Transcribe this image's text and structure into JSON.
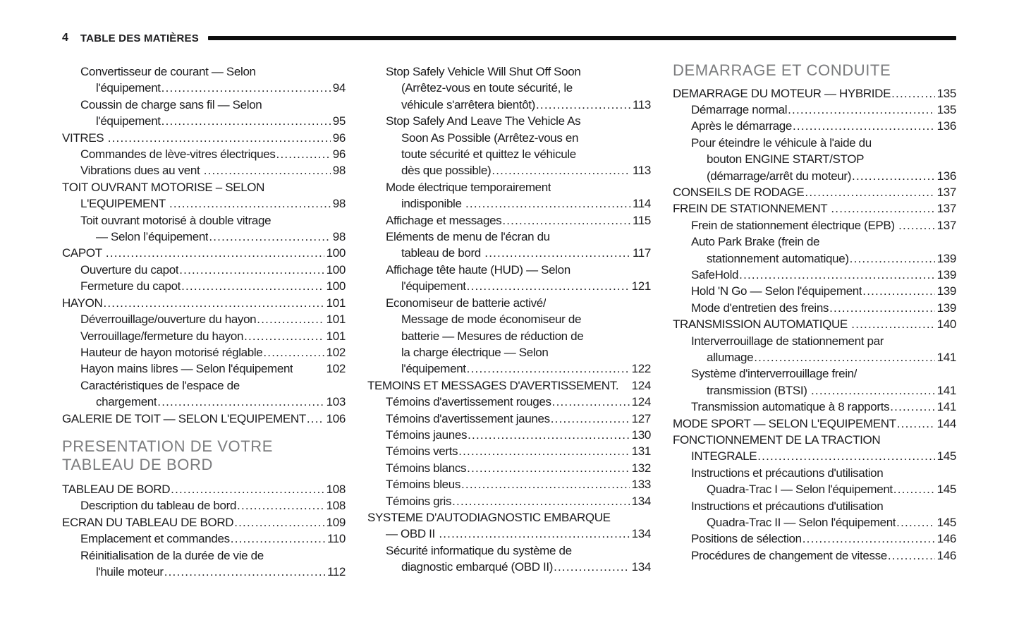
{
  "header": {
    "page_number": "4",
    "title": "TABLE DES MATIÈRES"
  },
  "colors": {
    "background": "#ffffff",
    "text": "#1c1c1e",
    "section_header": "#7b7c7e",
    "rule": "#0e0e0e"
  },
  "columns": [
    {
      "items": [
        {
          "type": "entry",
          "lines": [
            {
              "t": "Convertisseur de courant — Selon",
              "i": 1
            },
            {
              "t": "l'équipement",
              "i": 2,
              "p": "94"
            }
          ]
        },
        {
          "type": "entry",
          "lines": [
            {
              "t": "Coussin de charge sans fil — Selon",
              "i": 1
            },
            {
              "t": "l'équipement",
              "i": 2,
              "p": "95"
            }
          ]
        },
        {
          "type": "entry",
          "lines": [
            {
              "t": "VITRES ",
              "i": 0,
              "p": "96"
            }
          ]
        },
        {
          "type": "entry",
          "lines": [
            {
              "t": "Commandes de lève-vitres électriques",
              "i": 1,
              "p": "96"
            }
          ]
        },
        {
          "type": "entry",
          "lines": [
            {
              "t": "Vibrations dues au vent ",
              "i": 1,
              "p": "98"
            }
          ]
        },
        {
          "type": "entry",
          "lines": [
            {
              "t": "TOIT OUVRANT MOTORISE – SELON",
              "i": 0
            },
            {
              "t": "L'EQUIPEMENT ",
              "i": 1,
              "p": "98"
            }
          ]
        },
        {
          "type": "entry",
          "lines": [
            {
              "t": "Toit ouvrant motorisé à double vitrage",
              "i": 1
            },
            {
              "t": "— Selon l’équipement",
              "i": 2,
              "p": "98"
            }
          ]
        },
        {
          "type": "entry",
          "lines": [
            {
              "t": "CAPOT ",
              "i": 0,
              "p": "100"
            }
          ]
        },
        {
          "type": "entry",
          "lines": [
            {
              "t": "Ouverture du capot",
              "i": 1,
              "p": "100"
            }
          ]
        },
        {
          "type": "entry",
          "lines": [
            {
              "t": "Fermeture du capot",
              "i": 1,
              "p": "100"
            }
          ]
        },
        {
          "type": "entry",
          "lines": [
            {
              "t": "HAYON",
              "i": 0,
              "p": "101"
            }
          ]
        },
        {
          "type": "entry",
          "lines": [
            {
              "t": "Déverrouillage/ouverture du hayon",
              "i": 1,
              "p": "101"
            }
          ]
        },
        {
          "type": "entry",
          "lines": [
            {
              "t": "Verrouillage/fermeture du hayon",
              "i": 1,
              "p": "101"
            }
          ]
        },
        {
          "type": "entry",
          "lines": [
            {
              "t": "Hauteur de hayon motorisé réglable",
              "i": 1,
              "p": "102"
            }
          ]
        },
        {
          "type": "entry",
          "lines": [
            {
              "t": "Hayon mains libres — Selon l'équipement",
              "i": 1,
              "p": "102",
              "leader": "space"
            }
          ]
        },
        {
          "type": "entry",
          "lines": [
            {
              "t": "Caractéristiques de l'espace de",
              "i": 1
            },
            {
              "t": "chargement",
              "i": 2,
              "p": "103"
            }
          ]
        },
        {
          "type": "entry",
          "lines": [
            {
              "t": "GALERIE DE TOIT — SELON L'EQUIPEMENT",
              "i": 0,
              "p": "106"
            }
          ]
        },
        {
          "type": "header",
          "lines": [
            "PRESENTATION DE VOTRE",
            "TABLEAU DE BORD"
          ]
        },
        {
          "type": "entry",
          "lines": [
            {
              "t": "TABLEAU DE BORD",
              "i": 0,
              "p": "108"
            }
          ]
        },
        {
          "type": "entry",
          "lines": [
            {
              "t": "Description du tableau de bord",
              "i": 1,
              "p": "108"
            }
          ]
        },
        {
          "type": "entry",
          "lines": [
            {
              "t": "ECRAN DU TABLEAU DE BORD",
              "i": 0,
              "p": "109"
            }
          ]
        },
        {
          "type": "entry",
          "lines": [
            {
              "t": "Emplacement et commandes",
              "i": 1,
              "p": "110"
            }
          ]
        },
        {
          "type": "entry",
          "lines": [
            {
              "t": "Réinitialisation de la durée de vie de",
              "i": 1
            },
            {
              "t": "l'huile moteur",
              "i": 2,
              "p": "112"
            }
          ]
        }
      ]
    },
    {
      "items": [
        {
          "type": "entry",
          "lines": [
            {
              "t": "Stop Safely Vehicle Will Shut Off Soon",
              "i": 1
            },
            {
              "t": "(Arrêtez-vous en toute sécurité, le",
              "i": 2
            },
            {
              "t": "véhicule s'arrêtera bientôt)",
              "i": 2,
              "p": "113"
            }
          ]
        },
        {
          "type": "entry",
          "lines": [
            {
              "t": "Stop Safely And Leave The Vehicle As",
              "i": 1
            },
            {
              "t": "Soon As Possible (Arrêtez-vous en",
              "i": 2
            },
            {
              "t": "toute sécurité et quittez le véhicule",
              "i": 2
            },
            {
              "t": "dès que possible)",
              "i": 2,
              "p": "113"
            }
          ]
        },
        {
          "type": "entry",
          "lines": [
            {
              "t": "Mode électrique temporairement",
              "i": 1
            },
            {
              "t": "indisponible ",
              "i": 2,
              "p": "114"
            }
          ]
        },
        {
          "type": "entry",
          "lines": [
            {
              "t": "Affichage et messages",
              "i": 1,
              "p": "115"
            }
          ]
        },
        {
          "type": "entry",
          "lines": [
            {
              "t": "Eléments de menu de l'écran du",
              "i": 1
            },
            {
              "t": "tableau de bord ",
              "i": 2,
              "p": "117"
            }
          ]
        },
        {
          "type": "entry",
          "lines": [
            {
              "t": "Affichage tête haute (HUD) — Selon",
              "i": 1
            },
            {
              "t": "l'équipement",
              "i": 2,
              "p": "121"
            }
          ]
        },
        {
          "type": "entry",
          "lines": [
            {
              "t": "Economiseur de batterie activé/",
              "i": 1
            },
            {
              "t": "Message de mode économiseur de",
              "i": 2
            },
            {
              "t": "batterie — Mesures de réduction de",
              "i": 2
            },
            {
              "t": "la charge électrique — Selon",
              "i": 2
            },
            {
              "t": "l'équipement",
              "i": 2,
              "p": "122"
            }
          ]
        },
        {
          "type": "entry",
          "lines": [
            {
              "t": "TEMOINS ET MESSAGES D'AVERTISSEMENT.",
              "i": 0,
              "p": "124",
              "leader": "space"
            }
          ]
        },
        {
          "type": "entry",
          "lines": [
            {
              "t": "Témoins d'avertissement rouges",
              "i": 1,
              "p": "124"
            }
          ]
        },
        {
          "type": "entry",
          "lines": [
            {
              "t": "Témoins d'avertissement jaunes",
              "i": 1,
              "p": "127"
            }
          ]
        },
        {
          "type": "entry",
          "lines": [
            {
              "t": "Témoins jaunes",
              "i": 1,
              "p": "130"
            }
          ]
        },
        {
          "type": "entry",
          "lines": [
            {
              "t": "Témoins verts",
              "i": 1,
              "p": "131"
            }
          ]
        },
        {
          "type": "entry",
          "lines": [
            {
              "t": "Témoins blancs",
              "i": 1,
              "p": "132"
            }
          ]
        },
        {
          "type": "entry",
          "lines": [
            {
              "t": "Témoins bleus",
              "i": 1,
              "p": "133"
            }
          ]
        },
        {
          "type": "entry",
          "lines": [
            {
              "t": "Témoins gris",
              "i": 1,
              "p": "134"
            }
          ]
        },
        {
          "type": "entry",
          "lines": [
            {
              "t": "SYSTEME D'AUTODIAGNOSTIC EMBARQUE",
              "i": 0
            },
            {
              "t": "— OBD II ",
              "i": 1,
              "p": "134"
            }
          ]
        },
        {
          "type": "entry",
          "lines": [
            {
              "t": "Sécurité informatique du système de",
              "i": 1
            },
            {
              "t": "diagnostic embarqué (OBD II)",
              "i": 2,
              "p": "134"
            }
          ]
        }
      ]
    },
    {
      "items": [
        {
          "type": "header",
          "lines": [
            "DEMARRAGE ET CONDUITE"
          ]
        },
        {
          "type": "entry",
          "lines": [
            {
              "t": "DEMARRAGE DU MOTEUR — HYBRIDE",
              "i": 0,
              "p": "135"
            }
          ]
        },
        {
          "type": "entry",
          "lines": [
            {
              "t": "Démarrage normal",
              "i": 1,
              "p": "135"
            }
          ]
        },
        {
          "type": "entry",
          "lines": [
            {
              "t": "Après le démarrage",
              "i": 1,
              "p": "136"
            }
          ]
        },
        {
          "type": "entry",
          "lines": [
            {
              "t": "Pour éteindre le véhicule à l'aide du",
              "i": 1
            },
            {
              "t": "bouton ENGINE START/STOP",
              "i": 2
            },
            {
              "t": "(démarrage/arrêt du moteur)",
              "i": 2,
              "p": "136"
            }
          ]
        },
        {
          "type": "entry",
          "lines": [
            {
              "t": "CONSEILS DE RODAGE",
              "i": 0,
              "p": "137"
            }
          ]
        },
        {
          "type": "entry",
          "lines": [
            {
              "t": "FREIN DE STATIONNEMENT ",
              "i": 0,
              "p": "137"
            }
          ]
        },
        {
          "type": "entry",
          "lines": [
            {
              "t": "Frein de stationnement électrique (EPB) ",
              "i": 1,
              "p": "137"
            }
          ]
        },
        {
          "type": "entry",
          "lines": [
            {
              "t": "Auto Park Brake (frein de",
              "i": 1
            },
            {
              "t": "stationnement automatique)",
              "i": 2,
              "p": "139"
            }
          ]
        },
        {
          "type": "entry",
          "lines": [
            {
              "t": "SafeHold",
              "i": 1,
              "p": "139"
            }
          ]
        },
        {
          "type": "entry",
          "lines": [
            {
              "t": "Hold 'N Go — Selon l'équipement",
              "i": 1,
              "p": "139"
            }
          ]
        },
        {
          "type": "entry",
          "lines": [
            {
              "t": "Mode d'entretien des freins",
              "i": 1,
              "p": "139"
            }
          ]
        },
        {
          "type": "entry",
          "lines": [
            {
              "t": "TRANSMISSION AUTOMATIQUE ",
              "i": 0,
              "p": "140"
            }
          ]
        },
        {
          "type": "entry",
          "lines": [
            {
              "t": "Interverrouillage de stationnement par",
              "i": 1
            },
            {
              "t": "allumage",
              "i": 2,
              "p": "141"
            }
          ]
        },
        {
          "type": "entry",
          "lines": [
            {
              "t": "Système d'interverrouillage frein/",
              "i": 1
            },
            {
              "t": "transmission (BTSI) ",
              "i": 2,
              "p": "141"
            }
          ]
        },
        {
          "type": "entry",
          "lines": [
            {
              "t": "Transmission automatique à 8 rapports",
              "i": 1,
              "p": "141"
            }
          ]
        },
        {
          "type": "entry",
          "lines": [
            {
              "t": "MODE SPORT — SELON L'EQUIPEMENT",
              "i": 0,
              "p": "144"
            }
          ]
        },
        {
          "type": "entry",
          "lines": [
            {
              "t": "FONCTIONNEMENT DE LA TRACTION",
              "i": 0
            },
            {
              "t": "INTEGRALE",
              "i": 1,
              "p": "145"
            }
          ]
        },
        {
          "type": "entry",
          "lines": [
            {
              "t": "Instructions et précautions d'utilisation",
              "i": 1
            },
            {
              "t": "Quadra-Trac I — Selon l'équipement",
              "i": 2,
              "p": "145"
            }
          ]
        },
        {
          "type": "entry",
          "lines": [
            {
              "t": "Instructions et précautions d'utilisation",
              "i": 1
            },
            {
              "t": "Quadra-Trac II — Selon l'équipement",
              "i": 2,
              "p": "145"
            }
          ]
        },
        {
          "type": "entry",
          "lines": [
            {
              "t": "Positions de sélection",
              "i": 1,
              "p": "146"
            }
          ]
        },
        {
          "type": "entry",
          "lines": [
            {
              "t": "Procédures de changement de vitesse",
              "i": 1,
              "p": "146"
            }
          ]
        }
      ]
    }
  ]
}
